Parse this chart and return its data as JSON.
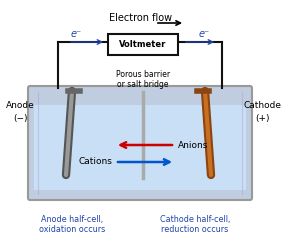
{
  "bg_color": "#ffffff",
  "title": "Electron flow",
  "voltmeter_label": "Voltmeter",
  "porous_label": "Porous barrier\nor salt bridge",
  "anode_label": "Anode",
  "anode_sign": "(−)",
  "cathode_label": "Cathode",
  "cathode_sign": "(+)",
  "anions_label": "Anions",
  "cations_label": "Cations",
  "bottom_left": "Anode half-cell,\noxidation occurs",
  "bottom_right": "Cathode half-cell,\nreduction occurs",
  "e_left": "e⁻",
  "e_right": "e⁻",
  "text_color_blue": "#2244aa",
  "wire_color": "#111111",
  "red_arrow": "#cc0000",
  "blue_arrow": "#0055cc",
  "cell_fill": "#c8dff5",
  "cell_outer": "#cccccc",
  "voltmeter_fill": "#ffffff",
  "voltmeter_edge": "#111111",
  "anode_color1": "#888888",
  "anode_color2": "#aaaaaa",
  "cathode_color1": "#8b4513",
  "cathode_color2": "#c87020",
  "barrier_color": "#aaaaaa",
  "glass_color": "#c0cce0"
}
